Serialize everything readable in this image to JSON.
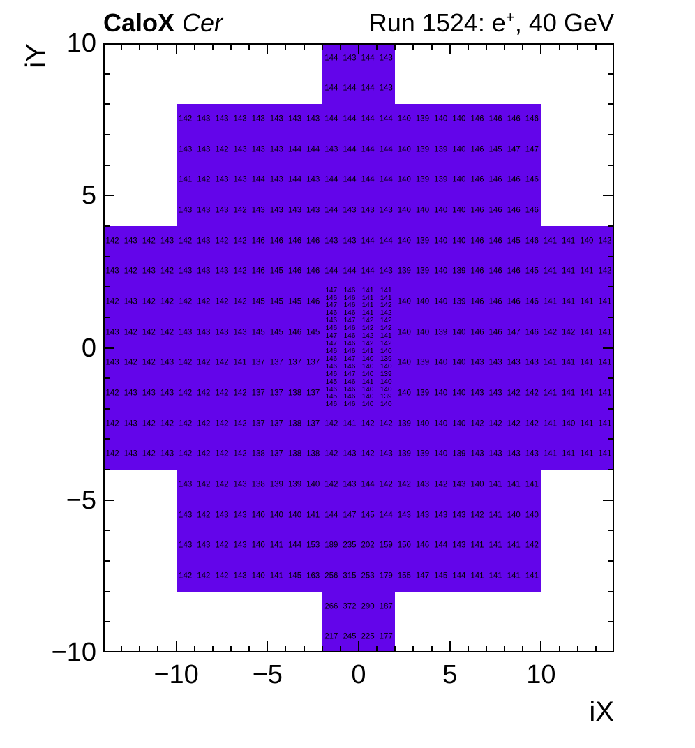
{
  "header": {
    "left_bold": "CaloX",
    "left_italic": "Cer",
    "run_prefix": "Run 1524: e",
    "run_sup": "+",
    "run_suffix": ", 40 GeV"
  },
  "chart_data": {
    "type": "heatmap",
    "title": "CaloX Cer",
    "subtitle": "Run 1524: e+, 40 GeV",
    "xlabel": "iX",
    "ylabel": "iY",
    "xlim": [
      -14,
      14
    ],
    "ylim": [
      -10,
      10
    ],
    "grid": false,
    "cell_color": "#6305EA",
    "x_major_ticks": [
      -10,
      -5,
      0,
      5,
      10
    ],
    "x_major_labels": [
      "−10",
      "−5",
      "0",
      "5",
      "10"
    ],
    "y_major_ticks": [
      -10,
      -5,
      0,
      5,
      10
    ],
    "y_major_labels": [
      "−10",
      "−5",
      "0",
      "5",
      "10"
    ],
    "blocks": [
      {
        "x0": -2,
        "x1": 2,
        "y0": 8,
        "y1": 10
      },
      {
        "x0": -10,
        "x1": 10,
        "y0": 4,
        "y1": 8
      },
      {
        "x0": -14,
        "x1": 14,
        "y0": -4,
        "y1": 4
      },
      {
        "x0": -10,
        "x1": 10,
        "y0": -8,
        "y1": -4
      },
      {
        "x0": -2,
        "x1": 2,
        "y0": -10,
        "y1": -8
      }
    ],
    "rows": [
      {
        "iy": 9.5,
        "segments": [
          {
            "start": -1.5,
            "values": [
              144,
              143,
              144,
              143
            ]
          }
        ]
      },
      {
        "iy": 8.5,
        "segments": [
          {
            "start": -1.5,
            "values": [
              144,
              144,
              144,
              143
            ]
          }
        ]
      },
      {
        "iy": 7.5,
        "segments": [
          {
            "start": -9.5,
            "values": [
              142,
              143,
              143,
              143,
              143,
              143,
              143,
              143,
              144,
              144,
              144,
              144,
              140,
              139,
              140,
              140,
              146,
              146,
              146,
              146
            ]
          }
        ]
      },
      {
        "iy": 6.5,
        "segments": [
          {
            "start": -9.5,
            "values": [
              143,
              143,
              142,
              143,
              143,
              143,
              144,
              144,
              143,
              144,
              144,
              144,
              140,
              139,
              139,
              140,
              146,
              145,
              147,
              147
            ]
          }
        ]
      },
      {
        "iy": 5.5,
        "segments": [
          {
            "start": -9.5,
            "values": [
              141,
              142,
              143,
              143,
              144,
              143,
              144,
              143,
              144,
              144,
              144,
              144,
              140,
              139,
              139,
              140,
              146,
              146,
              146,
              146
            ]
          }
        ]
      },
      {
        "iy": 4.5,
        "segments": [
          {
            "start": -9.5,
            "values": [
              143,
              143,
              143,
              142,
              143,
              143,
              143,
              143,
              144,
              143,
              143,
              143,
              140,
              140,
              140,
              140,
              146,
              146,
              146,
              146
            ]
          }
        ]
      },
      {
        "iy": 3.5,
        "segments": [
          {
            "start": -13.5,
            "values": [
              142,
              143,
              142,
              143,
              142,
              143,
              142,
              142,
              146,
              146,
              146,
              146,
              143,
              143,
              144,
              144,
              140,
              139,
              140,
              140,
              146,
              146,
              145,
              146,
              141,
              141,
              140,
              142
            ]
          }
        ]
      },
      {
        "iy": 2.5,
        "segments": [
          {
            "start": -13.5,
            "values": [
              143,
              142,
              143,
              142,
              143,
              143,
              143,
              142,
              146,
              145,
              146,
              146,
              144,
              144,
              144,
              143,
              139,
              139,
              140,
              139,
              146,
              146,
              146,
              145,
              141,
              141,
              141,
              142
            ]
          }
        ]
      },
      {
        "iy": 1.5,
        "segments": [
          {
            "start": -13.5,
            "values": [
              142,
              143,
              142,
              142,
              142,
              142,
              142,
              142,
              145,
              145,
              145,
              146
            ]
          },
          {
            "start": 2.5,
            "values": [
              140,
              140,
              140,
              139,
              146,
              146,
              146,
              146,
              141,
              141,
              141,
              141
            ]
          }
        ]
      },
      {
        "iy": 0.5,
        "segments": [
          {
            "start": -13.5,
            "values": [
              143,
              142,
              142,
              142,
              143,
              143,
              143,
              143,
              145,
              145,
              146,
              145
            ]
          },
          {
            "start": 2.5,
            "values": [
              140,
              140,
              139,
              140,
              146,
              146,
              147,
              146,
              142,
              142,
              141,
              141
            ]
          }
        ]
      },
      {
        "iy": -0.5,
        "segments": [
          {
            "start": -13.5,
            "values": [
              143,
              142,
              142,
              143,
              142,
              142,
              142,
              141,
              137,
              137,
              137,
              137
            ]
          },
          {
            "start": 2.5,
            "values": [
              140,
              139,
              140,
              140,
              143,
              143,
              143,
              143,
              141,
              141,
              141,
              141
            ]
          }
        ]
      },
      {
        "iy": -1.5,
        "segments": [
          {
            "start": -13.5,
            "values": [
              142,
              143,
              143,
              143,
              142,
              142,
              142,
              142,
              137,
              137,
              138,
              137
            ]
          },
          {
            "start": 2.5,
            "values": [
              140,
              139,
              140,
              140,
              143,
              143,
              142,
              142,
              141,
              141,
              141,
              141
            ]
          }
        ]
      },
      {
        "iy": -2.5,
        "segments": [
          {
            "start": -13.5,
            "values": [
              142,
              143,
              142,
              142,
              142,
              142,
              142,
              142,
              137,
              137,
              138,
              137,
              142,
              141,
              142,
              142,
              139,
              140,
              140,
              140,
              142,
              142,
              142,
              142,
              141,
              140,
              141,
              141
            ]
          }
        ]
      },
      {
        "iy": -3.5,
        "segments": [
          {
            "start": -13.5,
            "values": [
              142,
              143,
              142,
              143,
              142,
              142,
              142,
              142,
              138,
              137,
              138,
              138,
              142,
              143,
              142,
              143,
              139,
              139,
              140,
              139,
              143,
              143,
              143,
              143,
              141,
              141,
              141,
              141
            ]
          }
        ]
      },
      {
        "iy": -4.5,
        "segments": [
          {
            "start": -9.5,
            "values": [
              143,
              142,
              142,
              143,
              138,
              139,
              139,
              140,
              142,
              143,
              144,
              142,
              142,
              143,
              142,
              143,
              140,
              141,
              141,
              141
            ]
          }
        ]
      },
      {
        "iy": -5.5,
        "segments": [
          {
            "start": -9.5,
            "values": [
              143,
              142,
              143,
              143,
              140,
              140,
              140,
              141,
              144,
              147,
              145,
              144,
              143,
              143,
              143,
              143,
              142,
              141,
              140,
              140
            ]
          }
        ]
      },
      {
        "iy": -6.5,
        "segments": [
          {
            "start": -9.5,
            "values": [
              143,
              143,
              142,
              143,
              140,
              141,
              144,
              153,
              189,
              235,
              202,
              159,
              150,
              146,
              144,
              143,
              141,
              141,
              141,
              142
            ]
          }
        ]
      },
      {
        "iy": -7.5,
        "segments": [
          {
            "start": -9.5,
            "values": [
              142,
              142,
              142,
              143,
              140,
              141,
              145,
              163,
              256,
              315,
              253,
              179,
              155,
              147,
              145,
              144,
              141,
              141,
              141,
              141
            ]
          }
        ]
      },
      {
        "iy": -8.5,
        "segments": [
          {
            "start": -1.5,
            "values": [
              266,
              372,
              290,
              187
            ]
          }
        ]
      },
      {
        "iy": -9.5,
        "segments": [
          {
            "start": -1.5,
            "values": [
              217,
              245,
              225,
              177
            ]
          }
        ]
      }
    ],
    "dense_grid": {
      "x_start": -1.5,
      "x_step": 1.0,
      "y_start": 1.875,
      "y_step": -0.25,
      "rows": [
        [
          147,
          146,
          141,
          141
        ],
        [
          146,
          146,
          141,
          141
        ],
        [
          147,
          146,
          141,
          142
        ],
        [
          146,
          146,
          141,
          142
        ],
        [
          146,
          147,
          142,
          142
        ],
        [
          146,
          146,
          142,
          142
        ],
        [
          147,
          146,
          142,
          141
        ],
        [
          147,
          146,
          142,
          142
        ],
        [
          146,
          146,
          141,
          140
        ],
        [
          146,
          147,
          140,
          139
        ],
        [
          146,
          146,
          140,
          140
        ],
        [
          146,
          147,
          140,
          139
        ],
        [
          145,
          146,
          141,
          140
        ],
        [
          146,
          146,
          140,
          140
        ],
        [
          145,
          146,
          140,
          139
        ],
        [
          146,
          146,
          140,
          140
        ]
      ]
    }
  }
}
